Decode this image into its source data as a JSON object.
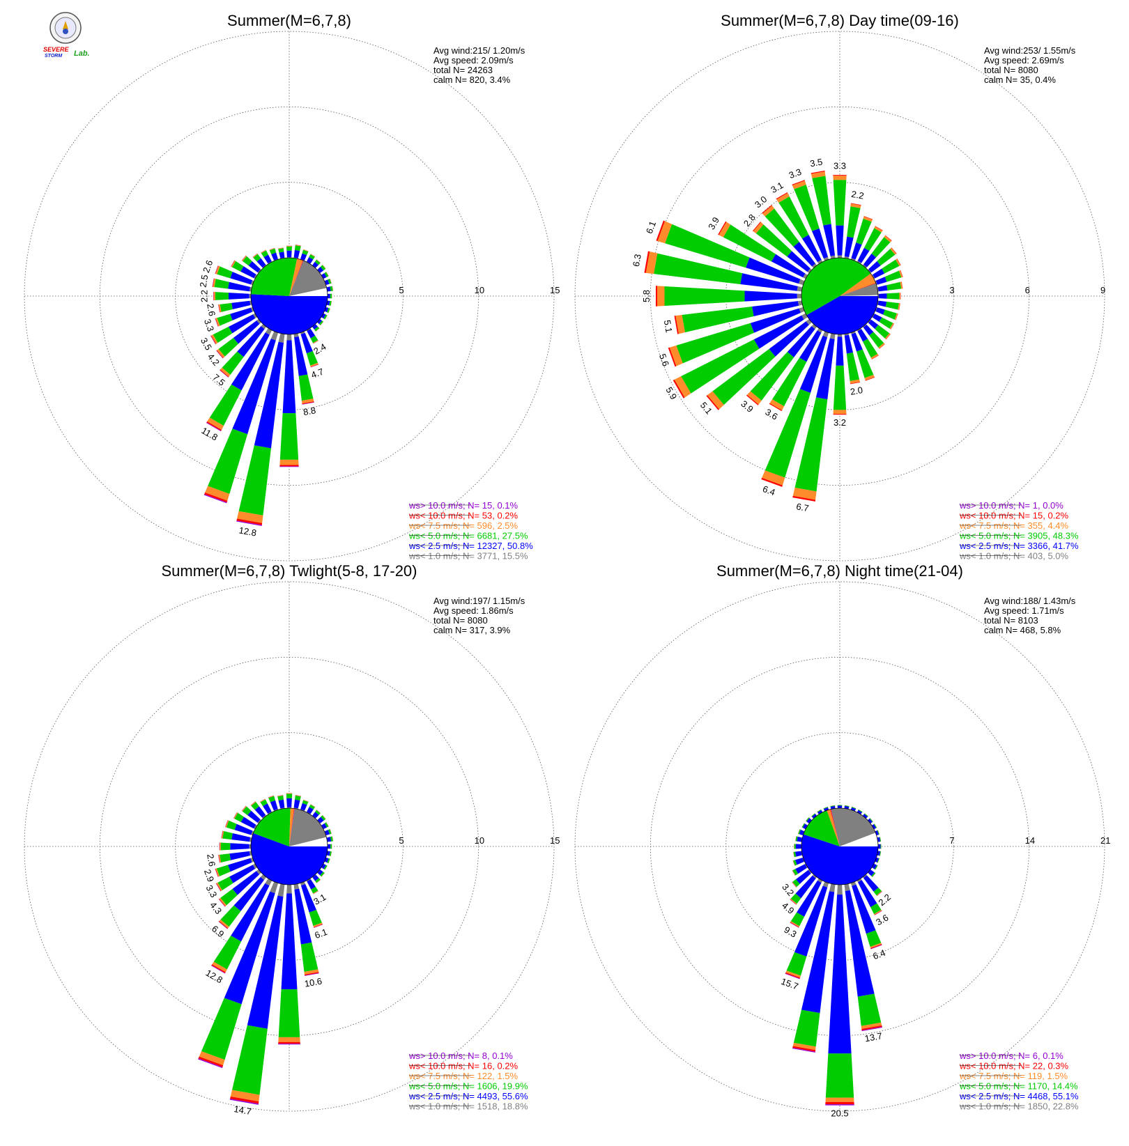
{
  "logo": {
    "text_line1": "SEVERE",
    "text_line2": "STORM",
    "text_line3": "Lab."
  },
  "colors": {
    "gt10": "#9400d3",
    "lt10": "#ff0000",
    "lt75": "#ff8c2a",
    "lt5": "#00cc00",
    "lt25": "#0000ff",
    "lt1": "#808080",
    "grid": "#555555"
  },
  "chart_data": [
    {
      "type": "polar-bar",
      "title": "Summer(M=6,7,8)",
      "stats": [
        "Avg wind:215/ 1.20m/s",
        "Avg speed: 2.09m/s",
        "total N=      24263",
        "calm N=    820,   3.4%"
      ],
      "ring_labels": [
        "5",
        "10",
        "15"
      ],
      "rmax": 15,
      "labels": [
        {
          "dir": 190,
          "value": "12.8"
        },
        {
          "dir": 210,
          "value": "11.8"
        },
        {
          "dir": 170,
          "value": "8.8"
        },
        {
          "dir": 220,
          "value": "7.5"
        },
        {
          "dir": 160,
          "value": "4.7"
        },
        {
          "dir": 150,
          "value": "2.4"
        },
        {
          "dir": 230,
          "value": "4.2"
        },
        {
          "dir": 240,
          "value": "3.5"
        },
        {
          "dir": 250,
          "value": "3.3"
        },
        {
          "dir": 260,
          "value": "2.6"
        },
        {
          "dir": 270,
          "value": "2.2"
        },
        {
          "dir": 280,
          "value": "2.5"
        },
        {
          "dir": 290,
          "value": "2.6"
        }
      ],
      "legend": [
        {
          "text": "ws> 10.0 m/s; N=     15,   0.1%",
          "color": "#9400d3"
        },
        {
          "text": "ws< 10.0 m/s; N=     53,   0.2%",
          "color": "#ff0000"
        },
        {
          "text": "ws<  7.5 m/s; N=    596,   2.5%",
          "color": "#ff8c2a"
        },
        {
          "text": "ws<  5.0 m/s; N=   6681,  27.5%",
          "color": "#00cc00"
        },
        {
          "text": "ws<  2.5 m/s; N=  12327,  50.8%",
          "color": "#0000ff"
        },
        {
          "text": "ws<  1.0 m/s; N=   3771,  15.5%",
          "color": "#808080"
        }
      ],
      "sectors": [
        0.8,
        0.9,
        0.7,
        0.6,
        0.5,
        0.5,
        0.4,
        0.4,
        0.4,
        0.3,
        0.3,
        0.3,
        0.3,
        0.3,
        0.4,
        1.0,
        2.4,
        4.7,
        8.8,
        12.8,
        11.8,
        7.5,
        4.2,
        3.5,
        3.3,
        2.6,
        2.2,
        2.5,
        2.6,
        2.6,
        1.8,
        1.4,
        1.0,
        0.9,
        0.8,
        0.7
      ],
      "fractions": {
        "gt10": 0.005,
        "lt10": 0.01,
        "lt75": 0.04,
        "lt5": 0.35,
        "lt25": 0.55,
        "lt1": 0.045
      },
      "pie": [
        0.508,
        0.275,
        0.025,
        0.002,
        0.001,
        0.155,
        0.034
      ]
    },
    {
      "type": "polar-bar",
      "title": "Summer(M=6,7,8) Day time(09-16)",
      "stats": [
        "Avg wind:253/ 1.55m/s",
        "Avg speed: 2.69m/s",
        "total N=       8080",
        "calm N=     35,   0.4%"
      ],
      "ring_labels": [
        "3",
        "6",
        "9"
      ],
      "rmax": 9,
      "labels": [
        {
          "dir": 0,
          "value": "3.3"
        },
        {
          "dir": 10,
          "value": "2.2"
        },
        {
          "dir": 350,
          "value": "3.5"
        },
        {
          "dir": 340,
          "value": "3.3"
        },
        {
          "dir": 330,
          "value": "3.1"
        },
        {
          "dir": 320,
          "value": "3.0"
        },
        {
          "dir": 310,
          "value": "2.8"
        },
        {
          "dir": 300,
          "value": "3.9"
        },
        {
          "dir": 290,
          "value": "6.1"
        },
        {
          "dir": 280,
          "value": "6.3"
        },
        {
          "dir": 270,
          "value": "5.8"
        },
        {
          "dir": 260,
          "value": "5.1"
        },
        {
          "dir": 250,
          "value": "5.6"
        },
        {
          "dir": 240,
          "value": "5.9"
        },
        {
          "dir": 230,
          "value": "5.1"
        },
        {
          "dir": 220,
          "value": "3.9"
        },
        {
          "dir": 210,
          "value": "3.6"
        },
        {
          "dir": 200,
          "value": "6.4"
        },
        {
          "dir": 190,
          "value": "6.7"
        },
        {
          "dir": 180,
          "value": "3.2"
        },
        {
          "dir": 170,
          "value": "2.0"
        }
      ],
      "legend": [
        {
          "text": "ws> 10.0 m/s; N=      1,   0.0%",
          "color": "#9400d3"
        },
        {
          "text": "ws< 10.0 m/s; N=     15,   0.2%",
          "color": "#ff0000"
        },
        {
          "text": "ws<  7.5 m/s; N=    355,   4.4%",
          "color": "#ff8c2a"
        },
        {
          "text": "ws<  5.0 m/s; N=   3905,  48.3%",
          "color": "#00cc00"
        },
        {
          "text": "ws<  2.5 m/s; N=   3366,  41.7%",
          "color": "#0000ff"
        },
        {
          "text": "ws<  1.0 m/s; N=    403,   5.0%",
          "color": "#808080"
        }
      ],
      "sectors": [
        3.3,
        2.2,
        1.8,
        1.6,
        1.5,
        1.3,
        1.2,
        1.1,
        1.0,
        0.9,
        0.9,
        0.9,
        0.9,
        1.0,
        1.1,
        1.3,
        2.0,
        2.0,
        3.2,
        6.7,
        6.4,
        3.6,
        3.9,
        5.1,
        5.9,
        5.6,
        5.1,
        5.8,
        6.3,
        6.1,
        3.9,
        2.8,
        3.0,
        3.1,
        3.3,
        3.5
      ],
      "fractions": {
        "gt10": 0.0,
        "lt10": 0.01,
        "lt75": 0.05,
        "lt5": 0.55,
        "lt25": 0.36,
        "lt1": 0.03
      },
      "pie": [
        0.417,
        0.483,
        0.044,
        0.002,
        0.0,
        0.05,
        0.004
      ]
    },
    {
      "type": "polar-bar",
      "title": "Summer(M=6,7,8) Twlight(5-8, 17-20)",
      "stats": [
        "Avg wind:197/ 1.15m/s",
        "Avg speed: 1.86m/s",
        "total N=       8080",
        "calm N=    317,   3.9%"
      ],
      "ring_labels": [
        "5",
        "10",
        "15"
      ],
      "rmax": 15,
      "labels": [
        {
          "dir": 190,
          "value": "14.7"
        },
        {
          "dir": 210,
          "value": "12.8"
        },
        {
          "dir": 170,
          "value": "10.6"
        },
        {
          "dir": 160,
          "value": "6.1"
        },
        {
          "dir": 220,
          "value": "6.9"
        },
        {
          "dir": 150,
          "value": "3.1"
        },
        {
          "dir": 230,
          "value": "4.3"
        },
        {
          "dir": 240,
          "value": "3.3"
        },
        {
          "dir": 250,
          "value": "2.9"
        },
        {
          "dir": 260,
          "value": "2.6"
        }
      ],
      "legend": [
        {
          "text": "ws> 10.0 m/s; N=      8,   0.1%",
          "color": "#9400d3"
        },
        {
          "text": "ws< 10.0 m/s; N=     16,   0.2%",
          "color": "#ff0000"
        },
        {
          "text": "ws<  7.5 m/s; N=    122,   1.5%",
          "color": "#ff8c2a"
        },
        {
          "text": "ws<  5.0 m/s; N=   1606,  19.9%",
          "color": "#00cc00"
        },
        {
          "text": "ws<  2.5 m/s; N=   4493,  55.6%",
          "color": "#0000ff"
        },
        {
          "text": "ws<  1.0 m/s; N=   1518,  18.8%",
          "color": "#808080"
        }
      ],
      "sectors": [
        1.0,
        0.9,
        0.7,
        0.6,
        0.5,
        0.5,
        0.4,
        0.4,
        0.4,
        0.3,
        0.3,
        0.3,
        0.3,
        0.4,
        0.5,
        1.0,
        3.1,
        6.1,
        10.6,
        14.7,
        12.8,
        6.9,
        4.3,
        3.3,
        2.9,
        2.6,
        2.2,
        2.1,
        2.0,
        1.9,
        1.6,
        1.4,
        1.2,
        1.0,
        1.0,
        0.9
      ],
      "fractions": {
        "gt10": 0.005,
        "lt10": 0.01,
        "lt75": 0.03,
        "lt5": 0.3,
        "lt25": 0.6,
        "lt1": 0.055
      },
      "pie": [
        0.556,
        0.199,
        0.015,
        0.002,
        0.001,
        0.188,
        0.039
      ]
    },
    {
      "type": "polar-bar",
      "title": "Summer(M=6,7,8) Night time(21-04)",
      "stats": [
        "Avg wind:188/ 1.43m/s",
        "Avg speed: 1.71m/s",
        "total N=       8103",
        "calm N=    468,   5.8%"
      ],
      "ring_labels": [
        "7",
        "14",
        "21"
      ],
      "rmax": 21,
      "labels": [
        {
          "dir": 180,
          "value": "20.5"
        },
        {
          "dir": 200,
          "value": "15.7"
        },
        {
          "dir": 170,
          "value": "13.7"
        },
        {
          "dir": 210,
          "value": "9.3"
        },
        {
          "dir": 160,
          "value": "6.4"
        },
        {
          "dir": 220,
          "value": "4.9"
        },
        {
          "dir": 150,
          "value": "3.6"
        },
        {
          "dir": 230,
          "value": "3.2"
        },
        {
          "dir": 140,
          "value": "2.2"
        }
      ],
      "legend": [
        {
          "text": "ws> 10.0 m/s; N=      6,   0.1%",
          "color": "#9400d3"
        },
        {
          "text": "ws< 10.0 m/s; N=     22,   0.3%",
          "color": "#ff0000"
        },
        {
          "text": "ws<  7.5 m/s; N=    119,   1.5%",
          "color": "#ff8c2a"
        },
        {
          "text": "ws<  5.0 m/s; N=   1170,  14.4%",
          "color": "#00cc00"
        },
        {
          "text": "ws<  2.5 m/s; N=   4468,  55.1%",
          "color": "#0000ff"
        },
        {
          "text": "ws<  1.0 m/s; N=   1850,  22.8%",
          "color": "#808080"
        }
      ],
      "sectors": [
        0.3,
        0.3,
        0.3,
        0.3,
        0.3,
        0.3,
        0.3,
        0.3,
        0.3,
        0.3,
        0.3,
        0.3,
        0.4,
        0.6,
        2.2,
        3.6,
        6.4,
        13.7,
        20.5,
        15.7,
        9.3,
        4.9,
        3.2,
        2.0,
        1.4,
        1.0,
        0.8,
        0.7,
        0.6,
        0.5,
        0.4,
        0.4,
        0.3,
        0.3,
        0.3,
        0.3
      ],
      "fractions": {
        "gt10": 0.005,
        "lt10": 0.01,
        "lt75": 0.02,
        "lt5": 0.2,
        "lt25": 0.72,
        "lt1": 0.045
      },
      "pie": [
        0.551,
        0.144,
        0.015,
        0.003,
        0.001,
        0.228,
        0.058
      ]
    }
  ]
}
